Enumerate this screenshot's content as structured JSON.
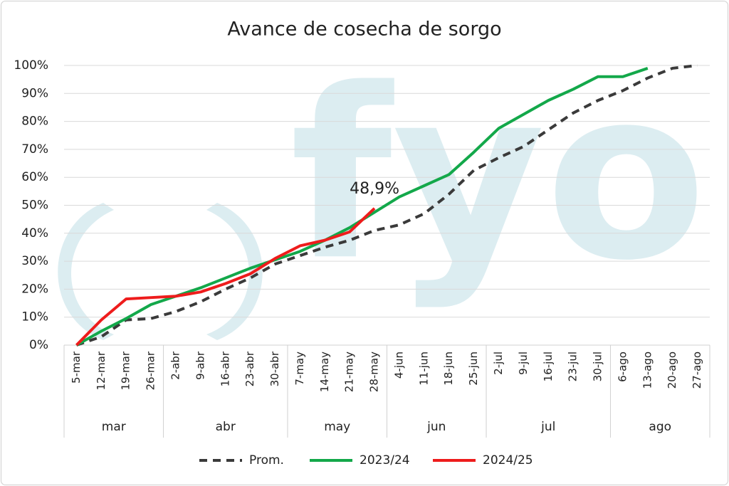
{
  "chart_data": {
    "type": "line",
    "title": "Avance de cosecha de sorgo",
    "watermark": "fyo",
    "categories": [
      "5-mar",
      "12-mar",
      "19-mar",
      "26-mar",
      "2-abr",
      "9-abr",
      "16-abr",
      "23-abr",
      "30-abr",
      "7-may",
      "14-may",
      "21-may",
      "28-may",
      "4-jun",
      "11-jun",
      "18-jun",
      "25-jun",
      "2-jul",
      "9-jul",
      "16-jul",
      "23-jul",
      "30-jul",
      "6-ago",
      "13-ago",
      "20-ago",
      "27-ago"
    ],
    "groups": [
      {
        "label": "mar",
        "count": 4
      },
      {
        "label": "abr",
        "count": 5
      },
      {
        "label": "may",
        "count": 4
      },
      {
        "label": "jun",
        "count": 4
      },
      {
        "label": "jul",
        "count": 5
      },
      {
        "label": "ago",
        "count": 4
      }
    ],
    "series": [
      {
        "name": "Prom.",
        "color": "#3a3a3a",
        "dashed": true,
        "values": [
          0,
          3,
          9,
          9.5,
          12,
          15.5,
          20,
          24,
          29,
          32,
          35,
          37.5,
          41,
          43,
          47,
          54,
          62.5,
          67,
          71,
          77,
          83,
          87.5,
          91,
          95.5,
          99,
          100
        ]
      },
      {
        "name": "2023/24",
        "color": "#13a84a",
        "dashed": false,
        "values": [
          0,
          5,
          9.5,
          14.5,
          17.5,
          20.5,
          24,
          27.5,
          30.5,
          33.5,
          37.5,
          42,
          47.5,
          53,
          57,
          61,
          69,
          77.5,
          82.5,
          87.5,
          91.5,
          96,
          96,
          99,
          null,
          null
        ]
      },
      {
        "name": "2024/25",
        "color": "#ee1c1c",
        "dashed": false,
        "values": [
          0,
          9,
          16.5,
          17,
          17.5,
          19,
          22,
          25.5,
          31,
          35.5,
          37.5,
          40.5,
          48.9,
          null,
          null,
          null,
          null,
          null,
          null,
          null,
          null,
          null,
          null,
          null,
          null,
          null
        ],
        "value_labels": [
          null,
          null,
          null,
          null,
          null,
          null,
          null,
          null,
          null,
          null,
          null,
          null,
          "48,9%",
          null,
          null,
          null,
          null,
          null,
          null,
          null,
          null,
          null,
          null,
          null,
          null,
          null
        ]
      }
    ],
    "ylim": [
      0,
      100
    ],
    "yticks": [
      {
        "value": 0,
        "label": "0%"
      },
      {
        "value": 10,
        "label": "10%"
      },
      {
        "value": 20,
        "label": "20%"
      },
      {
        "value": 30,
        "label": "30%"
      },
      {
        "value": 40,
        "label": "40%"
      },
      {
        "value": 50,
        "label": "50%"
      },
      {
        "value": 60,
        "label": "60%"
      },
      {
        "value": 70,
        "label": "70%"
      },
      {
        "value": 80,
        "label": "80%"
      },
      {
        "value": 90,
        "label": "90%"
      },
      {
        "value": 100,
        "label": "100%"
      }
    ],
    "grid": true,
    "legend": "bottom"
  }
}
